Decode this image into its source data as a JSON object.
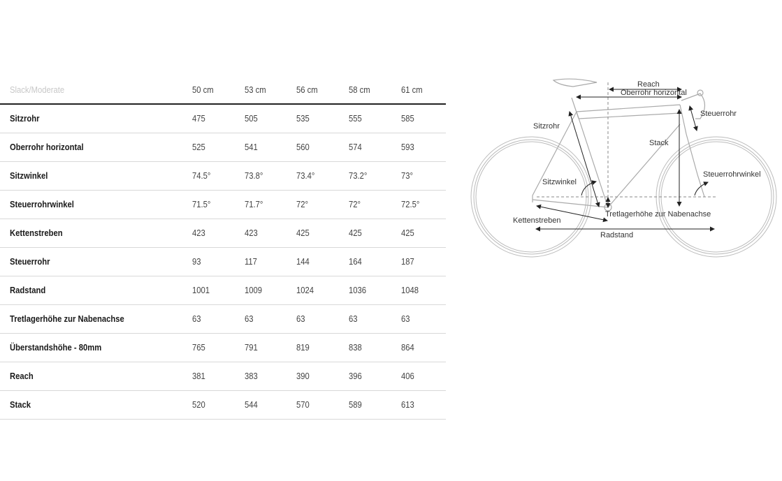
{
  "table": {
    "preset": "Slack/Moderate",
    "sizes": [
      "50 cm",
      "53 cm",
      "56 cm",
      "58 cm",
      "61 cm"
    ],
    "rows": [
      {
        "label": "Sitzrohr",
        "values": [
          "475",
          "505",
          "535",
          "555",
          "585"
        ]
      },
      {
        "label": "Oberrohr horizontal",
        "values": [
          "525",
          "541",
          "560",
          "574",
          "593"
        ]
      },
      {
        "label": "Sitzwinkel",
        "values": [
          "74.5°",
          "73.8°",
          "73.4°",
          "73.2°",
          "73°"
        ]
      },
      {
        "label": "Steuerrohrwinkel",
        "values": [
          "71.5°",
          "71.7°",
          "72°",
          "72°",
          "72.5°"
        ]
      },
      {
        "label": "Kettenstreben",
        "values": [
          "423",
          "423",
          "425",
          "425",
          "425"
        ]
      },
      {
        "label": "Steuerrohr",
        "values": [
          "93",
          "117",
          "144",
          "164",
          "187"
        ]
      },
      {
        "label": "Radstand",
        "values": [
          "1001",
          "1009",
          "1024",
          "1036",
          "1048"
        ]
      },
      {
        "label": "Tretlagerhöhe zur Nabenachse",
        "values": [
          "63",
          "63",
          "63",
          "63",
          "63"
        ]
      },
      {
        "label": "Überstandshöhe - 80mm",
        "values": [
          "765",
          "791",
          "819",
          "838",
          "864"
        ]
      },
      {
        "label": "Reach",
        "values": [
          "381",
          "383",
          "390",
          "396",
          "406"
        ]
      },
      {
        "label": "Stack",
        "values": [
          "520",
          "544",
          "570",
          "589",
          "613"
        ]
      }
    ]
  },
  "diagram": {
    "labels": {
      "reach": "Reach",
      "top_tube": "Oberrohr horizontal",
      "head_tube": "Steuerrohr",
      "seat_tube": "Sitzrohr",
      "stack": "Stack",
      "head_angle": "Steuerrohrwinkel",
      "seat_angle": "Sitzwinkel",
      "bb_drop": "Tretlagerhöhe zur Nabenachse",
      "chainstay": "Kettenstreben",
      "wheelbase": "Radstand"
    }
  }
}
